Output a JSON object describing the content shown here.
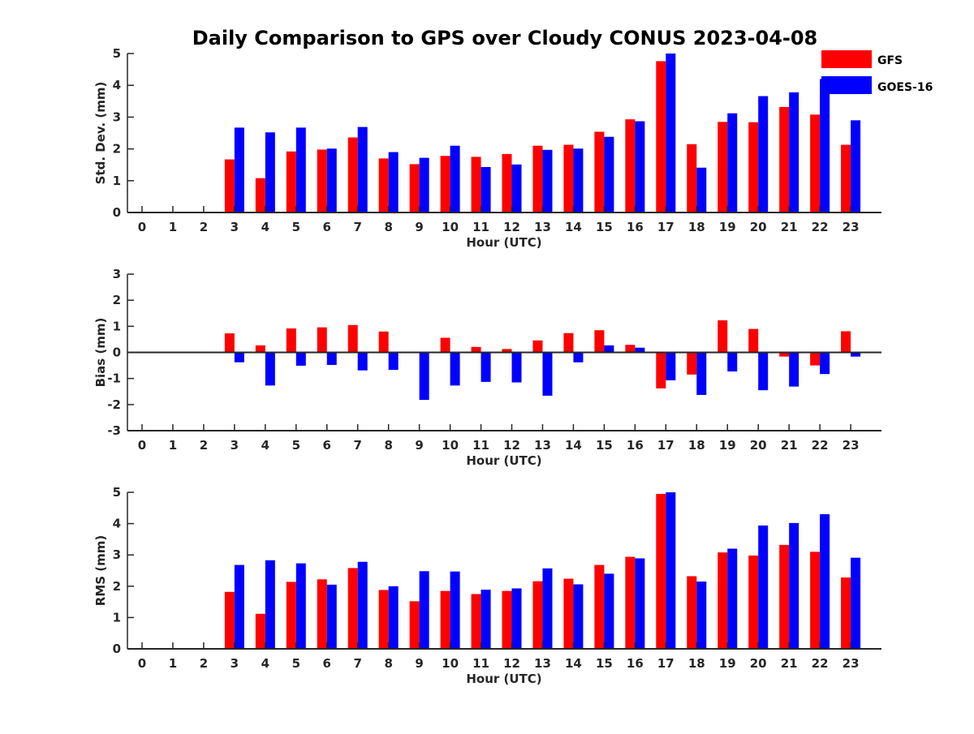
{
  "chart_data": {
    "type": "bar",
    "title": "Daily Comparison to GPS over Cloudy CONUS 2023-04-08",
    "legend": {
      "placement": "top-right",
      "entries": [
        "GFS",
        "GOES-16"
      ]
    },
    "colors": {
      "GFS": "#ff0000",
      "GOES-16": "#0000ff"
    },
    "categories": [
      "0",
      "1",
      "2",
      "3",
      "4",
      "5",
      "6",
      "7",
      "8",
      "9",
      "10",
      "11",
      "12",
      "13",
      "14",
      "15",
      "16",
      "17",
      "18",
      "19",
      "20",
      "21",
      "22",
      "23"
    ],
    "panels": [
      {
        "key": "std",
        "ylabel": "Std. Dev. (mm)",
        "xlabel": "Hour (UTC)",
        "ylim": [
          0,
          5
        ],
        "yticks": [
          0,
          1,
          2,
          3,
          4,
          5
        ],
        "series": [
          {
            "name": "GFS",
            "values": [
              null,
              null,
              null,
              1.67,
              1.08,
              1.92,
              1.98,
              2.36,
              1.7,
              1.52,
              1.78,
              1.75,
              1.84,
              2.1,
              2.13,
              2.54,
              2.93,
              4.76,
              2.15,
              2.85,
              2.84,
              3.32,
              3.08,
              2.13
            ]
          },
          {
            "name": "GOES-16",
            "values": [
              null,
              null,
              null,
              2.67,
              2.52,
              2.67,
              2.01,
              2.69,
              1.9,
              1.72,
              2.1,
              1.43,
              1.51,
              1.97,
              2.01,
              2.38,
              2.87,
              5.0,
              1.41,
              3.12,
              3.66,
              3.78,
              4.2,
              2.9
            ]
          }
        ]
      },
      {
        "key": "bias",
        "ylabel": "Bias (mm)",
        "xlabel": "Hour (UTC)",
        "ylim": [
          -3,
          3
        ],
        "yticks": [
          -3,
          -2,
          -1,
          0,
          1,
          2,
          3
        ],
        "series": [
          {
            "name": "GFS",
            "values": [
              0,
              0,
              0,
              0.73,
              0.27,
              0.92,
              0.96,
              1.05,
              0.8,
              -0.02,
              0.56,
              0.21,
              0.13,
              0.46,
              0.74,
              0.85,
              0.29,
              -1.38,
              -0.85,
              1.23,
              0.9,
              -0.16,
              -0.5,
              0.81
            ]
          },
          {
            "name": "GOES-16",
            "values": [
              0,
              0,
              0,
              -0.38,
              -1.27,
              -0.51,
              -0.48,
              -0.69,
              -0.67,
              -1.82,
              -1.27,
              -1.13,
              -1.15,
              -1.66,
              -0.38,
              0.27,
              0.18,
              -1.07,
              -1.63,
              -0.73,
              -1.45,
              -1.31,
              -0.83,
              -0.16
            ]
          }
        ]
      },
      {
        "key": "rms",
        "ylabel": "RMS (mm)",
        "xlabel": "Hour (UTC)",
        "ylim": [
          0,
          5
        ],
        "yticks": [
          0,
          1,
          2,
          3,
          4,
          5
        ],
        "series": [
          {
            "name": "GFS",
            "values": [
              null,
              null,
              null,
              1.82,
              1.12,
              2.14,
              2.22,
              2.58,
              1.88,
              1.52,
              1.85,
              1.75,
              1.85,
              2.16,
              2.24,
              2.68,
              2.94,
              4.95,
              2.32,
              3.08,
              2.98,
              3.32,
              3.1,
              2.28
            ]
          },
          {
            "name": "GOES-16",
            "values": [
              null,
              null,
              null,
              2.68,
              2.83,
              2.73,
              2.05,
              2.78,
              2.0,
              2.48,
              2.47,
              1.89,
              1.93,
              2.57,
              2.06,
              2.4,
              2.89,
              5.0,
              2.15,
              3.2,
              3.94,
              4.02,
              4.3,
              2.91
            ]
          }
        ]
      }
    ]
  }
}
